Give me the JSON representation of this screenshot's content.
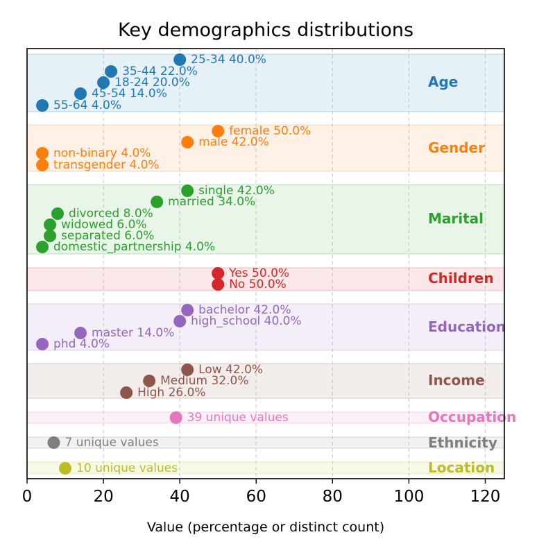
{
  "chart_data": {
    "type": "scatter",
    "title": "Key demographics distributions",
    "xlabel": "Value (percentage or distinct count)",
    "ylabel": "",
    "xlim": [
      0,
      125
    ],
    "xticks": [
      0,
      20,
      40,
      60,
      80,
      100,
      120
    ],
    "grid": "vertical dashed",
    "groups": [
      {
        "name": "Age",
        "color": "#1f77b4",
        "points": [
          {
            "value": 40,
            "label": "25-34 40.0%"
          },
          {
            "value": 22,
            "label": "35-44 22.0%"
          },
          {
            "value": 20,
            "label": "18-24 20.0%"
          },
          {
            "value": 14,
            "label": "45-54 14.0%"
          },
          {
            "value": 4,
            "label": "55-64 4.0%"
          }
        ]
      },
      {
        "name": "Gender",
        "color": "#ff7f0e",
        "points": [
          {
            "value": 50,
            "label": "female 50.0%"
          },
          {
            "value": 42,
            "label": "male 42.0%"
          },
          {
            "value": 4,
            "label": "non-binary 4.0%"
          },
          {
            "value": 4,
            "label": "transgender 4.0%"
          }
        ]
      },
      {
        "name": "Marital",
        "color": "#2ca02c",
        "points": [
          {
            "value": 42,
            "label": "single 42.0%"
          },
          {
            "value": 34,
            "label": "married 34.0%"
          },
          {
            "value": 8,
            "label": "divorced 8.0%"
          },
          {
            "value": 6,
            "label": "widowed 6.0%"
          },
          {
            "value": 6,
            "label": "separated 6.0%"
          },
          {
            "value": 4,
            "label": "domestic_partnership 4.0%"
          }
        ]
      },
      {
        "name": "Children",
        "color": "#d62728",
        "points": [
          {
            "value": 50,
            "label": "Yes 50.0%"
          },
          {
            "value": 50,
            "label": "No 50.0%"
          }
        ]
      },
      {
        "name": "Education",
        "color": "#9467bd",
        "points": [
          {
            "value": 42,
            "label": "bachelor 42.0%"
          },
          {
            "value": 40,
            "label": "high_school 40.0%"
          },
          {
            "value": 14,
            "label": "master 14.0%"
          },
          {
            "value": 4,
            "label": "phd 4.0%"
          }
        ]
      },
      {
        "name": "Income",
        "color": "#8c564b",
        "points": [
          {
            "value": 42,
            "label": "Low 42.0%"
          },
          {
            "value": 32,
            "label": "Medium 32.0%"
          },
          {
            "value": 26,
            "label": "High 26.0%"
          }
        ]
      },
      {
        "name": "Occupation",
        "color": "#e377c2",
        "points": [
          {
            "value": 39,
            "label": "39 unique values"
          }
        ]
      },
      {
        "name": "Ethnicity",
        "color": "#7f7f7f",
        "points": [
          {
            "value": 7,
            "label": "7 unique values"
          }
        ]
      },
      {
        "name": "Location",
        "color": "#bcbd22",
        "points": [
          {
            "value": 10,
            "label": "10 unique values"
          }
        ]
      }
    ]
  }
}
